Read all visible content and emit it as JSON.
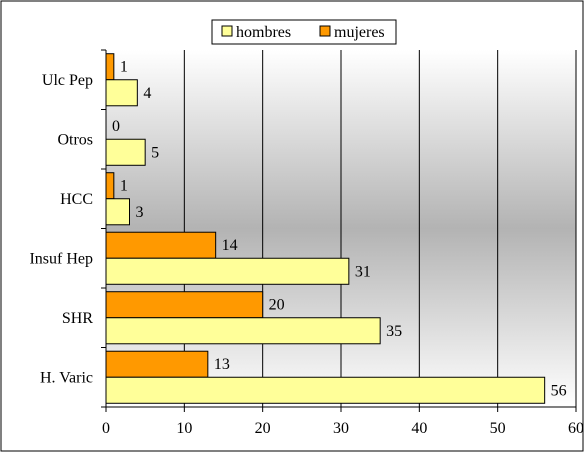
{
  "chart_data": {
    "type": "bar",
    "orientation": "horizontal",
    "categories": [
      "Ulc Pep",
      "Otros",
      "HCC",
      "Insuf Hep",
      "SHR",
      "H. Varic"
    ],
    "series": [
      {
        "name": "hombres",
        "values": [
          4,
          5,
          3,
          31,
          35,
          56
        ],
        "color": "#ffff99"
      },
      {
        "name": "mujeres",
        "values": [
          1,
          0,
          1,
          14,
          20,
          13
        ],
        "color": "#ff9900"
      }
    ],
    "xlim": [
      0,
      60
    ],
    "xticks": [
      0,
      10,
      20,
      30,
      40,
      50,
      60
    ],
    "grid": true,
    "legend_position": "top-center"
  },
  "colors": {
    "plot_background_edge": "#ffffff",
    "plot_background_center": "#b3b3b3",
    "bar_stroke": "#000000",
    "gridline": "#000000"
  }
}
